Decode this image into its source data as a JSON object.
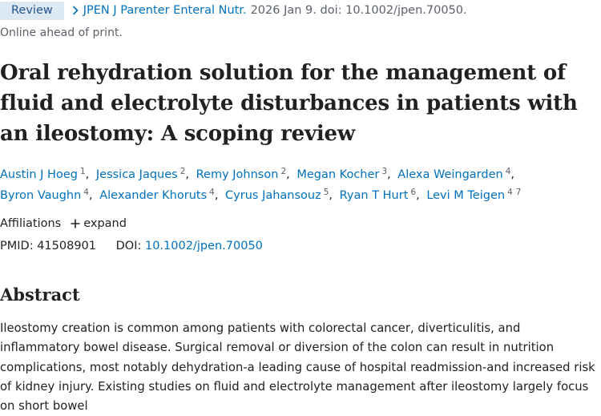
{
  "header": {
    "badge": "Review",
    "journal": "JPEN J Parenter Enteral Nutr.",
    "citation": "2026 Jan 9. doi: 10.1002/jpen.70050.",
    "status": "Online ahead of print."
  },
  "title": "Oral rehydration solution for the management of fluid and electrolyte disturbances in patients with an ileostomy: A scoping review",
  "authors": [
    {
      "name": "Austin J Hoeg",
      "affiliations": [
        1
      ]
    },
    {
      "name": "Jessica Jaques",
      "affiliations": [
        2
      ]
    },
    {
      "name": "Remy Johnson",
      "affiliations": [
        2
      ]
    },
    {
      "name": "Megan Kocher",
      "affiliations": [
        3
      ]
    },
    {
      "name": "Alexa Weingarden",
      "affiliations": [
        4
      ]
    },
    {
      "name": "Byron Vaughn",
      "affiliations": [
        4
      ]
    },
    {
      "name": "Alexander Khoruts",
      "affiliations": [
        4
      ]
    },
    {
      "name": "Cyrus Jahansouz",
      "affiliations": [
        5
      ]
    },
    {
      "name": "Ryan T Hurt",
      "affiliations": [
        6
      ]
    },
    {
      "name": "Levi M Teigen",
      "affiliations": [
        4,
        7
      ]
    }
  ],
  "affiliations": {
    "label": "Affiliations",
    "toggle": "expand"
  },
  "ids": {
    "pmid_label": "PMID:",
    "pmid": "41508901",
    "doi_label": "DOI:",
    "doi": "10.1002/jpen.70050"
  },
  "abstract": {
    "heading": "Abstract",
    "text": "Ileostomy creation is common among patients with colorectal cancer, diverticulitis, and inflammatory bowel disease. Surgical removal or diversion of the colon can result in nutrition complications, most notably dehydration-a leading cause of hospital readmission-and increased risk of kidney injury. Existing studies on fluid and electrolyte management after ileostomy largely focus on short bowel"
  }
}
